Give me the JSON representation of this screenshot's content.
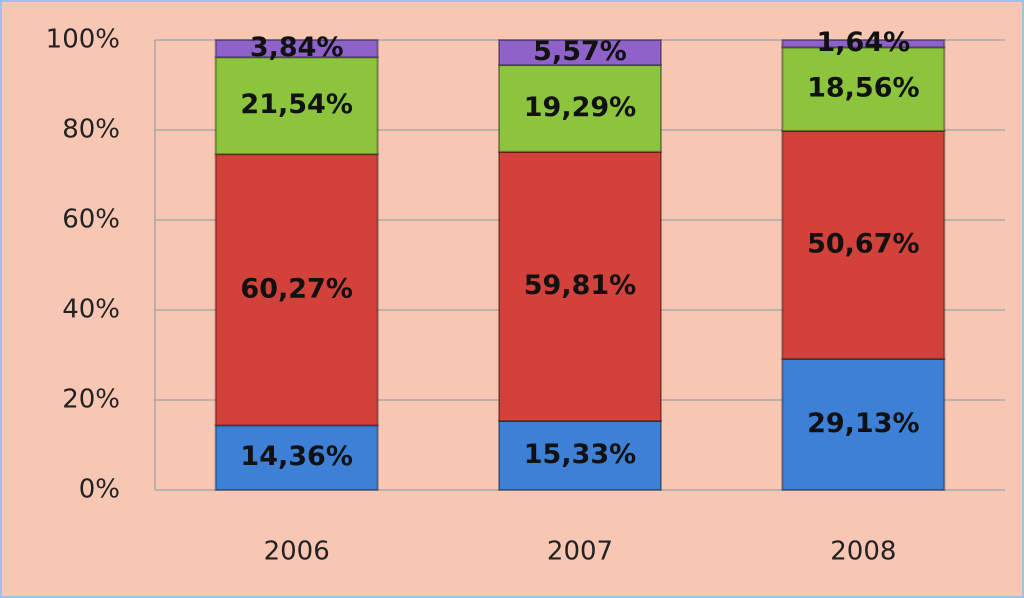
{
  "chart_data": {
    "type": "stacked_bar",
    "categories": [
      "2006",
      "2007",
      "2008"
    ],
    "series": [
      {
        "color": "#3d80d6",
        "values": [
          14.36,
          15.33,
          29.13
        ],
        "value_labels": [
          "14,36%",
          "15,33%",
          "29,13%"
        ]
      },
      {
        "color": "#d2423b",
        "values": [
          60.27,
          59.81,
          50.67
        ],
        "value_labels": [
          "60,27%",
          "59,81%",
          "50,67%"
        ]
      },
      {
        "color": "#8dc43d",
        "values": [
          21.54,
          19.29,
          18.56
        ],
        "value_labels": [
          "21,54%",
          "19,29%",
          "18,56%"
        ]
      },
      {
        "color": "#8e62c9",
        "values": [
          3.84,
          5.57,
          1.64
        ],
        "value_labels": [
          "3,84%",
          "5,57%",
          "1,64%"
        ]
      }
    ],
    "ylim": [
      0,
      100
    ],
    "yticks": [
      {
        "value": 0,
        "label": "0%"
      },
      {
        "value": 20,
        "label": "20%"
      },
      {
        "value": 40,
        "label": "40%"
      },
      {
        "value": 60,
        "label": "60%"
      },
      {
        "value": 80,
        "label": "80%"
      },
      {
        "value": 100,
        "label": "100%"
      }
    ],
    "grid": true
  }
}
